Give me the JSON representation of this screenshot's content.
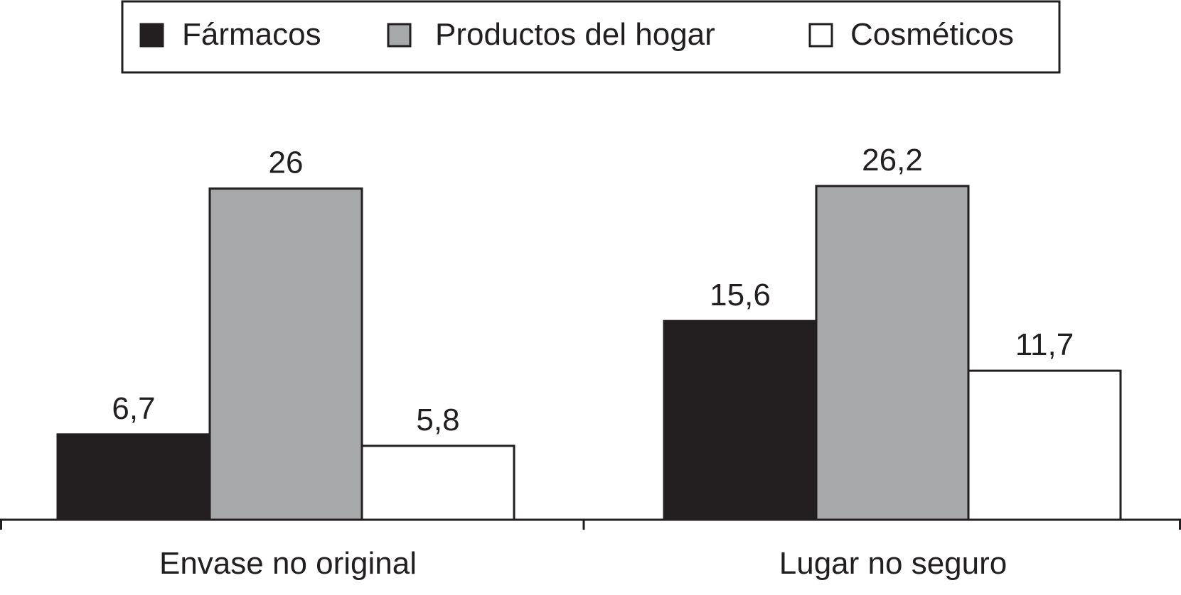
{
  "chart_data": {
    "type": "bar",
    "title": "",
    "xlabel": "",
    "ylabel": "",
    "categories": [
      "Envase no original",
      "Lugar no seguro"
    ],
    "series": [
      {
        "name": "Fármacos",
        "values": [
          6.7,
          15.6
        ],
        "labels": [
          "6,7",
          "15,6"
        ],
        "color": "#231f20"
      },
      {
        "name": "Productos del hogar",
        "values": [
          26,
          26.2
        ],
        "labels": [
          "26",
          "26,2"
        ],
        "color": "#a7a8aa"
      },
      {
        "name": "Cosméticos",
        "values": [
          5.8,
          11.7
        ],
        "labels": [
          "5,8",
          "11,7"
        ],
        "color": "#ffffff"
      }
    ],
    "ylim": [
      0,
      26.2
    ],
    "grid": false,
    "legend_position": "top-center",
    "show_value_axis": false
  }
}
